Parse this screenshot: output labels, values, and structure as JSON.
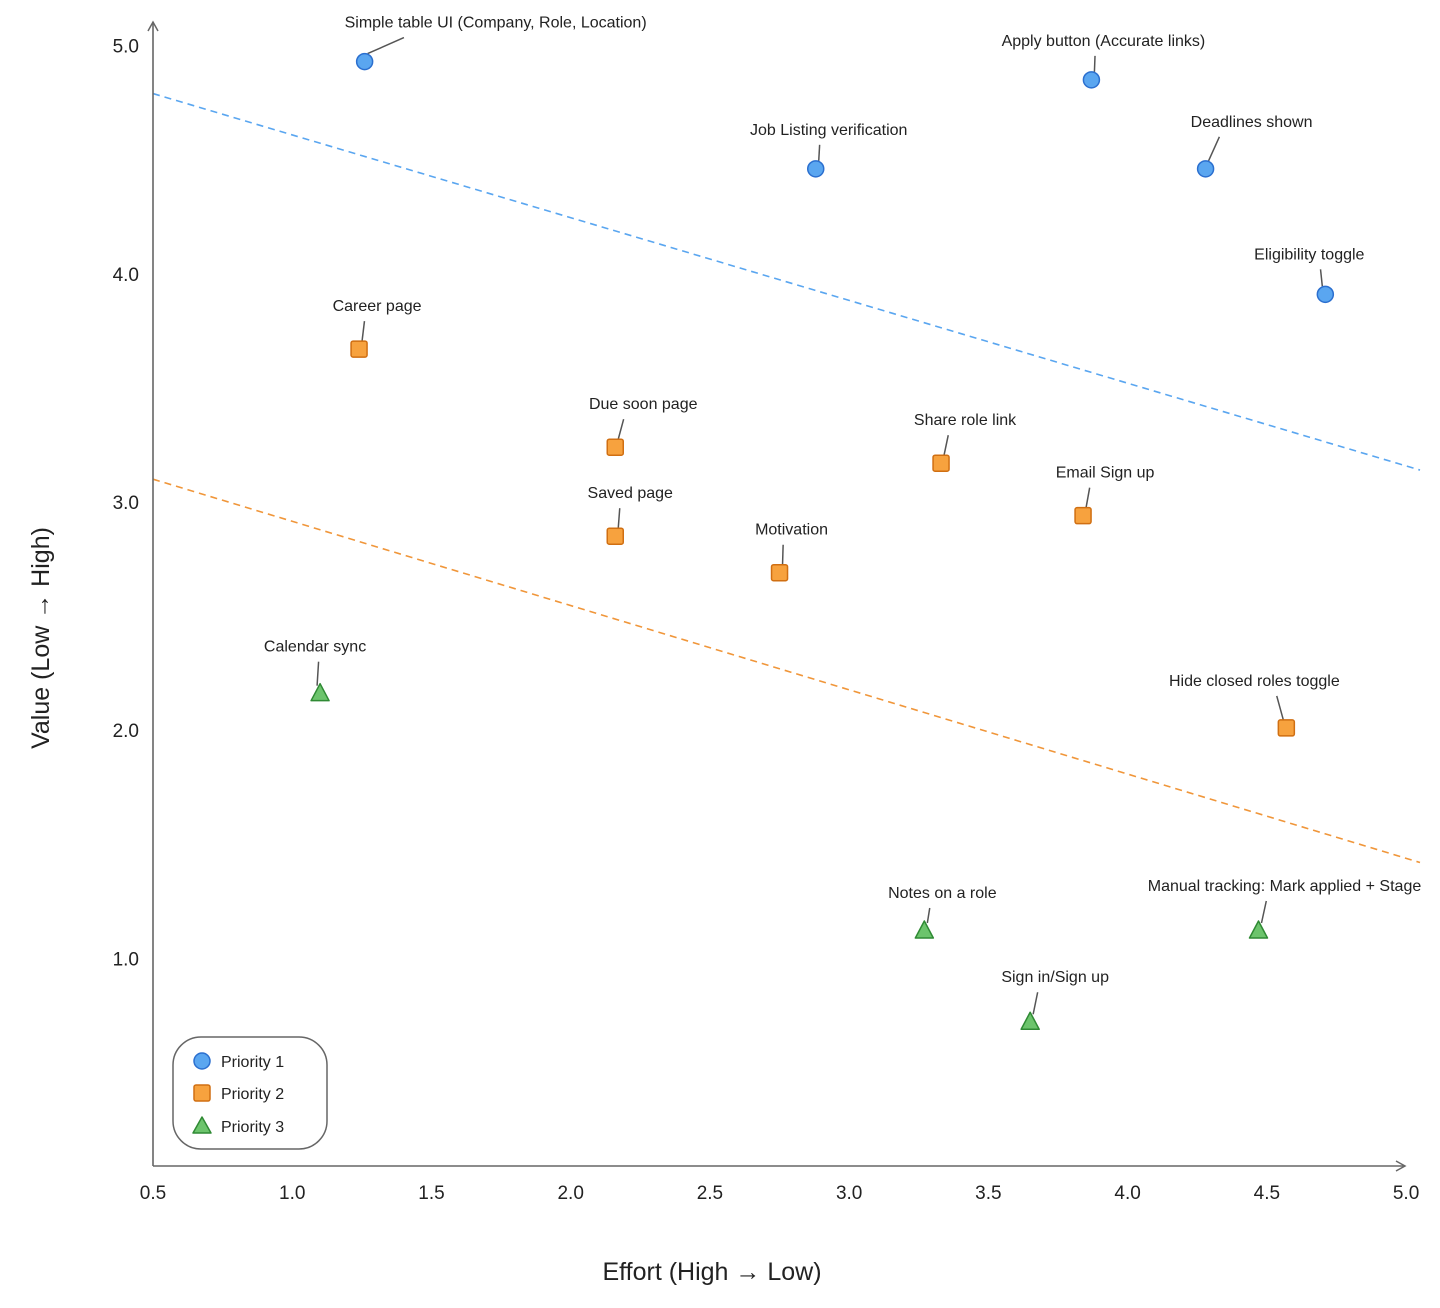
{
  "chart_data": {
    "type": "scatter",
    "xlabel": "Effort (High → Low)",
    "ylabel": "Value (Low → High)",
    "xlim": [
      0.5,
      5.05
    ],
    "ylim": [
      0.09,
      5.2
    ],
    "xticks": [
      "0.5",
      "1.0",
      "1.5",
      "2.0",
      "2.5",
      "3.0",
      "3.5",
      "4.0",
      "4.5",
      "5.0"
    ],
    "yticks": [
      "1.0",
      "2.0",
      "3.0",
      "4.0",
      "5.0"
    ],
    "grid": false,
    "legend_position": "bottom-left",
    "series": [
      {
        "name": "Priority 1",
        "marker": "circle",
        "color": "#5aa6f0",
        "stroke": "#2b6fcf",
        "points": [
          {
            "x": 1.26,
            "y": 4.93,
            "label": "Simple table UI (Company, Role, Location)"
          },
          {
            "x": 3.87,
            "y": 4.85,
            "label": "Apply button (Accurate links)"
          },
          {
            "x": 2.88,
            "y": 4.46,
            "label": "Job Listing verification"
          },
          {
            "x": 4.28,
            "y": 4.46,
            "label": "Deadlines shown"
          },
          {
            "x": 4.71,
            "y": 3.91,
            "label": "Eligibility toggle"
          }
        ]
      },
      {
        "name": "Priority 2",
        "marker": "square",
        "color": "#f7a23e",
        "stroke": "#d06f12",
        "points": [
          {
            "x": 1.24,
            "y": 3.67,
            "label": "Career page"
          },
          {
            "x": 2.16,
            "y": 3.24,
            "label": "Due soon page"
          },
          {
            "x": 3.33,
            "y": 3.17,
            "label": "Share role link"
          },
          {
            "x": 3.84,
            "y": 2.94,
            "label": "Email Sign up"
          },
          {
            "x": 2.16,
            "y": 2.85,
            "label": "Saved page"
          },
          {
            "x": 2.75,
            "y": 2.69,
            "label": "Motivation"
          },
          {
            "x": 4.57,
            "y": 2.01,
            "label": "Hide closed roles toggle"
          }
        ]
      },
      {
        "name": "Priority 3",
        "marker": "triangle",
        "color": "#6cc46c",
        "stroke": "#2f8a34",
        "points": [
          {
            "x": 1.1,
            "y": 2.16,
            "label": "Calendar sync"
          },
          {
            "x": 3.27,
            "y": 1.12,
            "label": "Notes on a role"
          },
          {
            "x": 4.47,
            "y": 1.12,
            "label": "Manual tracking: Mark applied + Stage"
          },
          {
            "x": 3.65,
            "y": 0.72,
            "label": "Sign in/Sign up"
          }
        ]
      }
    ],
    "threshold_lines": [
      {
        "color": "#5aa6f0",
        "from": [
          0.5,
          4.79
        ],
        "to": [
          5.05,
          3.14
        ],
        "style": "dashed"
      },
      {
        "color": "#f0963a",
        "from": [
          0.5,
          3.1
        ],
        "to": [
          5.05,
          1.42
        ],
        "style": "dashed"
      }
    ]
  }
}
